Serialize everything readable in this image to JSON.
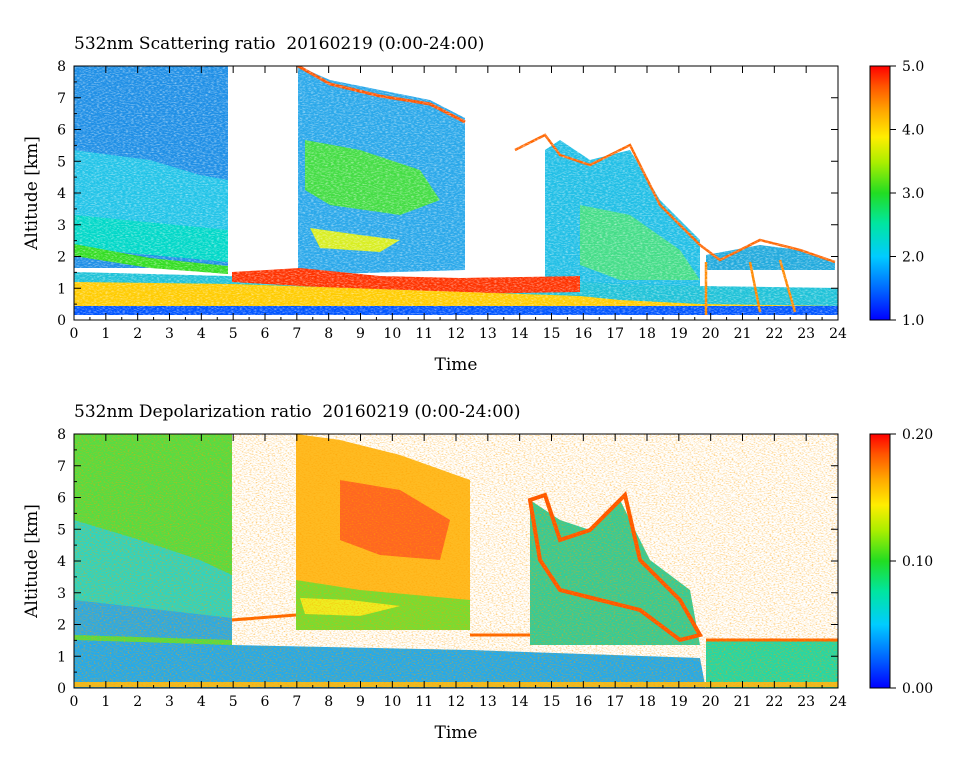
{
  "chart_data": [
    {
      "type": "heatmap",
      "title": "532nm Scattering ratio  20160219 (0:00-24:00)",
      "xlabel": "Time",
      "ylabel": "Altitude [km]",
      "xlim": [
        0,
        24
      ],
      "ylim": [
        0,
        8
      ],
      "x_ticks": [
        "0",
        "1",
        "2",
        "3",
        "4",
        "5",
        "6",
        "7",
        "8",
        "9",
        "10",
        "11",
        "12",
        "13",
        "14",
        "15",
        "16",
        "17",
        "18",
        "19",
        "20",
        "21",
        "22",
        "23",
        "24"
      ],
      "y_ticks": [
        "0",
        "1",
        "2",
        "3",
        "4",
        "5",
        "6",
        "7",
        "8"
      ],
      "colorbar": {
        "range": [
          1.0,
          5.0
        ],
        "tick_labels": [
          "1.0",
          "2.0",
          "3.0",
          "4.0",
          "5.0"
        ],
        "tick_values": [
          1.0,
          2.0,
          3.0,
          4.0,
          5.0
        ]
      },
      "grid": false
    },
    {
      "type": "heatmap",
      "title": "532nm Depolarization ratio  20160219 (0:00-24:00)",
      "xlabel": "Time",
      "ylabel": "Altitude [km]",
      "xlim": [
        0,
        24
      ],
      "ylim": [
        0,
        8
      ],
      "x_ticks": [
        "0",
        "1",
        "2",
        "3",
        "4",
        "5",
        "6",
        "7",
        "8",
        "9",
        "10",
        "11",
        "12",
        "13",
        "14",
        "15",
        "16",
        "17",
        "18",
        "19",
        "20",
        "21",
        "22",
        "23",
        "24"
      ],
      "y_ticks": [
        "0",
        "1",
        "2",
        "3",
        "4",
        "5",
        "6",
        "7",
        "8"
      ],
      "colorbar": {
        "range": [
          0.0,
          0.2
        ],
        "tick_labels": [
          "0.00",
          "0.10",
          "0.20"
        ],
        "tick_values": [
          0.0,
          0.1,
          0.2
        ]
      },
      "grid": false
    }
  ],
  "colors": {
    "scale": [
      "#0000ff",
      "#0066ff",
      "#00ccff",
      "#00e6a0",
      "#22dd22",
      "#aaee00",
      "#ffee00",
      "#ffaa00",
      "#ff5500",
      "#ff0000"
    ]
  }
}
